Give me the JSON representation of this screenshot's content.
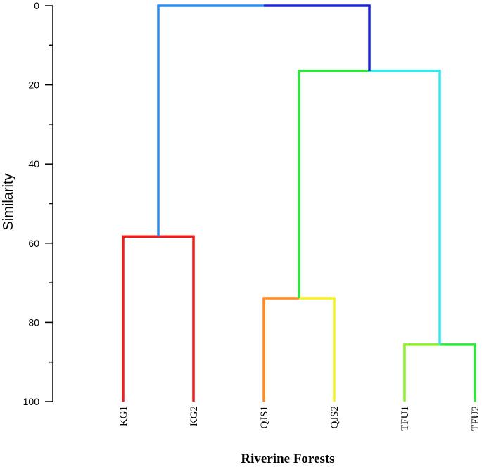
{
  "chart_data": {
    "type": "dendrogram",
    "ylabel": "Similarity",
    "xlabel": "Riverine Forests",
    "ylim": [
      0,
      100
    ],
    "y_ticks": [
      0,
      20,
      40,
      60,
      80,
      100
    ],
    "y_minor_ticks": [
      10,
      30,
      50,
      70,
      90
    ],
    "y_tick_labels": [
      "0",
      "20",
      "40",
      "60",
      "80",
      "100"
    ],
    "leaves": [
      {
        "name": "KG1",
        "label": "KG1"
      },
      {
        "name": "KG2",
        "label": "KG2"
      },
      {
        "name": "QJS1",
        "label": "QJS1"
      },
      {
        "name": "QJS2",
        "label": "QJS2"
      },
      {
        "name": "TFU1",
        "label": "TFU1"
      },
      {
        "name": "TFU2",
        "label": "TFU2"
      }
    ],
    "merges": [
      {
        "id": "m_kg",
        "left": "KG1",
        "right": "KG2",
        "similarity": 58.3,
        "left_color": "#ee1c1c",
        "right_color": "#ee1c1c",
        "color": "#ee1c1c"
      },
      {
        "id": "m_qjs",
        "left": "QJS1",
        "right": "QJS2",
        "similarity": 73.9,
        "left_color": "#ff8a1e",
        "right_color": "#f7f21e",
        "color": "#ff8a1e"
      },
      {
        "id": "m_tfu",
        "left": "TFU1",
        "right": "TFU2",
        "similarity": 85.6,
        "left_color": "#8aee2a",
        "right_color": "#2ee63a",
        "color": "#8aee2a"
      },
      {
        "id": "m_qt",
        "left": "m_qjs",
        "right": "m_tfu",
        "similarity": 16.5,
        "left_color": "#2ee63a",
        "right_color": "#33e8f2",
        "color": "#33e8f2"
      },
      {
        "id": "m_root",
        "left": "m_kg",
        "right": "m_qt",
        "similarity": 0,
        "left_color": "#2b8cf0",
        "right_color": "#1c22d8",
        "color": "#1c22d8"
      }
    ]
  }
}
